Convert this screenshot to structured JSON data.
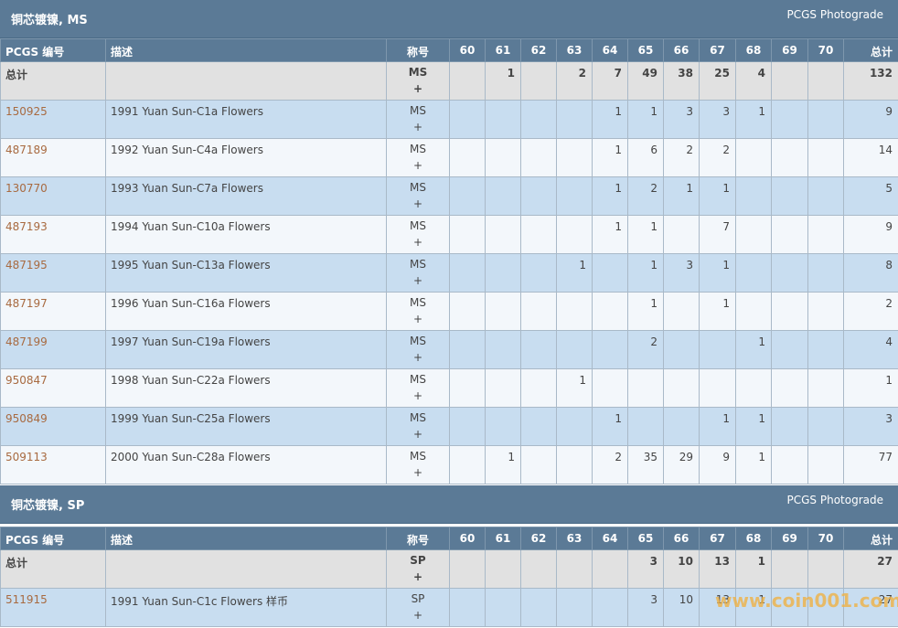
{
  "sections": [
    {
      "title": "铜芯镀镍, MS",
      "source": "PCGS Photograde",
      "header": {
        "pcgs_no": "PCGS 编号",
        "description": "描述",
        "designation": "称号",
        "grades": [
          "60",
          "61",
          "62",
          "63",
          "64",
          "65",
          "66",
          "67",
          "68",
          "69",
          "70"
        ],
        "total": "总计"
      },
      "total_row": {
        "label": "总计",
        "designation": "MS",
        "plus": "+",
        "counts": [
          "",
          "1",
          "",
          "2",
          "7",
          "49",
          "38",
          "25",
          "4",
          "",
          ""
        ],
        "total": "132"
      },
      "rows": [
        {
          "pcgs": "150925",
          "desc": "1991 Yuan Sun-C1a Flowers",
          "designation": "MS",
          "plus": "+",
          "counts": [
            "",
            "",
            "",
            "",
            "1",
            "1",
            "3",
            "3",
            "1",
            "",
            ""
          ],
          "total": "9"
        },
        {
          "pcgs": "487189",
          "desc": "1992 Yuan Sun-C4a Flowers",
          "designation": "MS",
          "plus": "+",
          "counts": [
            "",
            "",
            "",
            "",
            "1",
            "6",
            "2",
            "2",
            "",
            "",
            ""
          ],
          "total": "14"
        },
        {
          "pcgs": "130770",
          "desc": "1993 Yuan Sun-C7a Flowers",
          "designation": "MS",
          "plus": "+",
          "counts": [
            "",
            "",
            "",
            "",
            "1",
            "2",
            "1",
            "1",
            "",
            "",
            ""
          ],
          "total": "5"
        },
        {
          "pcgs": "487193",
          "desc": "1994 Yuan Sun-C10a Flowers",
          "designation": "MS",
          "plus": "+",
          "counts": [
            "",
            "",
            "",
            "",
            "1",
            "1",
            "",
            "7",
            "",
            "",
            ""
          ],
          "total": "9"
        },
        {
          "pcgs": "487195",
          "desc": "1995 Yuan Sun-C13a Flowers",
          "designation": "MS",
          "plus": "+",
          "counts": [
            "",
            "",
            "",
            "1",
            "",
            "1",
            "3",
            "1",
            "",
            "",
            ""
          ],
          "total": "8"
        },
        {
          "pcgs": "487197",
          "desc": "1996 Yuan Sun-C16a Flowers",
          "designation": "MS",
          "plus": "+",
          "counts": [
            "",
            "",
            "",
            "",
            "",
            "1",
            "",
            "1",
            "",
            "",
            ""
          ],
          "total": "2"
        },
        {
          "pcgs": "487199",
          "desc": "1997 Yuan Sun-C19a Flowers",
          "designation": "MS",
          "plus": "+",
          "counts": [
            "",
            "",
            "",
            "",
            "",
            "2",
            "",
            "",
            "1",
            "",
            ""
          ],
          "total": "4"
        },
        {
          "pcgs": "950847",
          "desc": "1998 Yuan Sun-C22a Flowers",
          "designation": "MS",
          "plus": "+",
          "counts": [
            "",
            "",
            "",
            "1",
            "",
            "",
            "",
            "",
            "",
            "",
            ""
          ],
          "total": "1"
        },
        {
          "pcgs": "950849",
          "desc": "1999 Yuan Sun-C25a Flowers",
          "designation": "MS",
          "plus": "+",
          "counts": [
            "",
            "",
            "",
            "",
            "1",
            "",
            "",
            "1",
            "1",
            "",
            ""
          ],
          "total": "3"
        },
        {
          "pcgs": "509113",
          "desc": "2000 Yuan Sun-C28a Flowers",
          "designation": "MS",
          "plus": "+",
          "counts": [
            "",
            "1",
            "",
            "",
            "2",
            "35",
            "29",
            "9",
            "1",
            "",
            ""
          ],
          "total": "77"
        }
      ]
    },
    {
      "title": "铜芯镀镍, SP",
      "source": "PCGS Photograde",
      "header": {
        "pcgs_no": "PCGS 编号",
        "description": "描述",
        "designation": "称号",
        "grades": [
          "60",
          "61",
          "62",
          "63",
          "64",
          "65",
          "66",
          "67",
          "68",
          "69",
          "70"
        ],
        "total": "总计"
      },
      "total_row": {
        "label": "总计",
        "designation": "SP",
        "plus": "+",
        "counts": [
          "",
          "",
          "",
          "",
          "",
          "3",
          "10",
          "13",
          "1",
          "",
          ""
        ],
        "total": "27"
      },
      "rows": [
        {
          "pcgs": "511915",
          "desc": "1991 Yuan Sun-C1c Flowers 样币",
          "designation": "SP",
          "plus": "+",
          "counts": [
            "",
            "",
            "",
            "",
            "",
            "3",
            "10",
            "13",
            "1",
            "",
            ""
          ],
          "total": "27"
        }
      ]
    }
  ],
  "watermark": "www.coin001.com"
}
